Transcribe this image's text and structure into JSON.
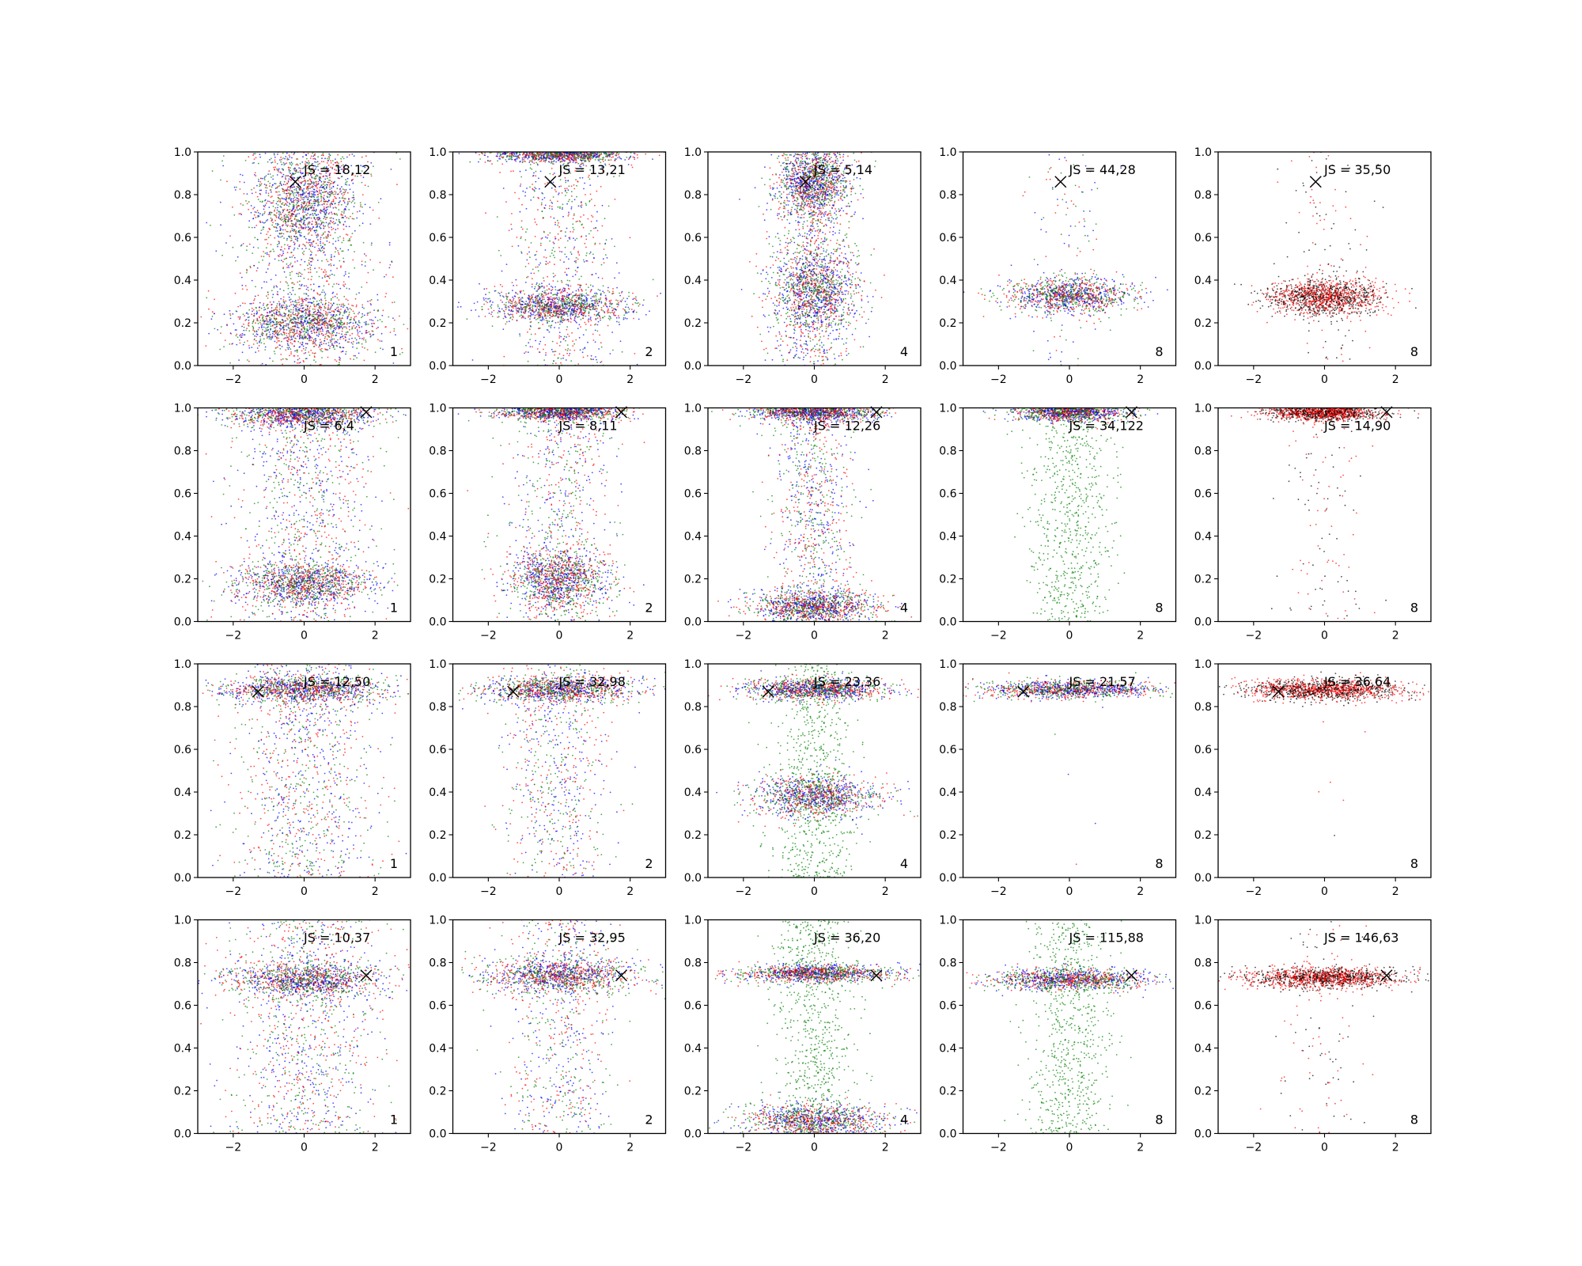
{
  "figure": {
    "layout": "4 rows x 5 columns grid of scatter subplots",
    "series_colors": {
      "green": "#008000",
      "blue": "#0000ff",
      "red": "#ff0000",
      "black": "#000000"
    },
    "marker_x_color": "#000000"
  },
  "chart_data": [
    {
      "type": "scatter",
      "row": 1,
      "col": 1,
      "js_label": "JS = 18,12",
      "corner_label": "1",
      "xlim": [
        -3,
        3
      ],
      "ylim": [
        0,
        1
      ],
      "x_ticks": [
        "−2",
        "0",
        "2"
      ],
      "y_ticks": [
        "0.0",
        "0.2",
        "0.4",
        "0.6",
        "0.8",
        "1.0"
      ],
      "marker_x": {
        "x": -0.25,
        "y": 0.86
      },
      "series_colors": [
        "green",
        "blue",
        "red"
      ],
      "clusters": [
        {
          "cx": 0,
          "cy": 0.2,
          "sx": 1.0,
          "sy": 0.06
        },
        {
          "cx": 0,
          "cy": 0.78,
          "sx": 0.7,
          "sy": 0.12
        }
      ],
      "spread": "wide vertical column"
    },
    {
      "type": "scatter",
      "row": 1,
      "col": 2,
      "js_label": "JS = 13,21",
      "corner_label": "2",
      "xlim": [
        -3,
        3
      ],
      "ylim": [
        0,
        1
      ],
      "x_ticks": [
        "−2",
        "0",
        "2"
      ],
      "y_ticks": [
        "0.0",
        "0.2",
        "0.4",
        "0.6",
        "0.8",
        "1.0"
      ],
      "marker_x": {
        "x": -0.25,
        "y": 0.86
      },
      "series_colors": [
        "green",
        "blue",
        "red"
      ],
      "clusters": [
        {
          "cx": 0,
          "cy": 0.28,
          "sx": 1.0,
          "sy": 0.04
        },
        {
          "cx": 0,
          "cy": 0.99,
          "sx": 1.0,
          "sy": 0.02
        }
      ],
      "spread": "vertical column"
    },
    {
      "type": "scatter",
      "row": 1,
      "col": 3,
      "js_label": "JS = 5,14",
      "corner_label": "4",
      "xlim": [
        -3,
        3
      ],
      "ylim": [
        0,
        1
      ],
      "x_ticks": [
        "−2",
        "0",
        "2"
      ],
      "y_ticks": [
        "0.0",
        "0.2",
        "0.4",
        "0.6",
        "0.8",
        "1.0"
      ],
      "marker_x": {
        "x": -0.25,
        "y": 0.86
      },
      "series_colors": [
        "green",
        "blue",
        "red"
      ],
      "clusters": [
        {
          "cx": 0,
          "cy": 0.35,
          "sx": 0.6,
          "sy": 0.1
        },
        {
          "cx": 0,
          "cy": 0.85,
          "sx": 0.5,
          "sy": 0.08
        }
      ],
      "spread": "narrow vertical column"
    },
    {
      "type": "scatter",
      "row": 1,
      "col": 4,
      "js_label": "JS = 44,28",
      "corner_label": "8",
      "xlim": [
        -3,
        3
      ],
      "ylim": [
        0,
        1
      ],
      "x_ticks": [
        "−2",
        "0",
        "2"
      ],
      "y_ticks": [
        "0.0",
        "0.2",
        "0.4",
        "0.6",
        "0.8",
        "1.0"
      ],
      "marker_x": {
        "x": -0.25,
        "y": 0.86
      },
      "series_colors": [
        "green",
        "blue",
        "red"
      ],
      "clusters": [
        {
          "cx": 0,
          "cy": 0.33,
          "sx": 0.9,
          "sy": 0.04
        }
      ],
      "spread": "dense band, sparse column"
    },
    {
      "type": "scatter",
      "row": 1,
      "col": 5,
      "js_label": "JS = 35,50",
      "corner_label": "8",
      "xlim": [
        -3,
        3
      ],
      "ylim": [
        0,
        1
      ],
      "x_ticks": [
        "−2",
        "0",
        "2"
      ],
      "y_ticks": [
        "0.0",
        "0.2",
        "0.4",
        "0.6",
        "0.8",
        "1.0"
      ],
      "marker_x": {
        "x": -0.25,
        "y": 0.86
      },
      "series_colors": [
        "black",
        "red"
      ],
      "clusters": [
        {
          "cx": 0,
          "cy": 0.32,
          "sx": 0.8,
          "sy": 0.04
        }
      ],
      "spread": "dense band, sparse column"
    },
    {
      "type": "scatter",
      "row": 2,
      "col": 1,
      "js_label": "JS = 6,4",
      "corner_label": "1",
      "xlim": [
        -3,
        3
      ],
      "ylim": [
        0,
        1
      ],
      "x_ticks": [
        "−2",
        "0",
        "2"
      ],
      "y_ticks": [
        "0.0",
        "0.2",
        "0.4",
        "0.6",
        "0.8",
        "1.0"
      ],
      "marker_x": {
        "x": 1.75,
        "y": 0.98
      },
      "series_colors": [
        "green",
        "blue",
        "red"
      ],
      "clusters": [
        {
          "cx": 0,
          "cy": 0.18,
          "sx": 1.0,
          "sy": 0.05
        },
        {
          "cx": 0,
          "cy": 0.97,
          "sx": 1.0,
          "sy": 0.03
        }
      ],
      "spread": "wide vertical column"
    },
    {
      "type": "scatter",
      "row": 2,
      "col": 2,
      "js_label": "JS = 8,11",
      "corner_label": "2",
      "xlim": [
        -3,
        3
      ],
      "ylim": [
        0,
        1
      ],
      "x_ticks": [
        "−2",
        "0",
        "2"
      ],
      "y_ticks": [
        "0.0",
        "0.2",
        "0.4",
        "0.6",
        "0.8",
        "1.0"
      ],
      "marker_x": {
        "x": 1.75,
        "y": 0.98
      },
      "series_colors": [
        "green",
        "blue",
        "red"
      ],
      "clusters": [
        {
          "cx": 0,
          "cy": 0.98,
          "sx": 0.9,
          "sy": 0.02
        },
        {
          "cx": 0,
          "cy": 0.2,
          "sx": 0.7,
          "sy": 0.07
        }
      ],
      "spread": "vertical column"
    },
    {
      "type": "scatter",
      "row": 2,
      "col": 3,
      "js_label": "JS = 12,26",
      "corner_label": "4",
      "xlim": [
        -3,
        3
      ],
      "ylim": [
        0,
        1
      ],
      "x_ticks": [
        "−2",
        "0",
        "2"
      ],
      "y_ticks": [
        "0.0",
        "0.2",
        "0.4",
        "0.6",
        "0.8",
        "1.0"
      ],
      "marker_x": {
        "x": 1.75,
        "y": 0.98
      },
      "series_colors": [
        "green",
        "blue",
        "red"
      ],
      "clusters": [
        {
          "cx": 0,
          "cy": 0.98,
          "sx": 0.9,
          "sy": 0.02
        },
        {
          "cx": 0,
          "cy": 0.07,
          "sx": 0.9,
          "sy": 0.04
        }
      ],
      "spread": "narrow vertical column"
    },
    {
      "type": "scatter",
      "row": 2,
      "col": 4,
      "js_label": "JS = 34,122",
      "corner_label": "8",
      "xlim": [
        -3,
        3
      ],
      "ylim": [
        0,
        1
      ],
      "x_ticks": [
        "−2",
        "0",
        "2"
      ],
      "y_ticks": [
        "0.0",
        "0.2",
        "0.4",
        "0.6",
        "0.8",
        "1.0"
      ],
      "marker_x": {
        "x": 1.75,
        "y": 0.98
      },
      "series_colors": [
        "green",
        "blue",
        "red"
      ],
      "clusters": [
        {
          "cx": 0,
          "cy": 0.98,
          "sx": 0.8,
          "sy": 0.02
        }
      ],
      "spread": "dense band, green column"
    },
    {
      "type": "scatter",
      "row": 2,
      "col": 5,
      "js_label": "JS = 14,90",
      "corner_label": "8",
      "xlim": [
        -3,
        3
      ],
      "ylim": [
        0,
        1
      ],
      "x_ticks": [
        "−2",
        "0",
        "2"
      ],
      "y_ticks": [
        "0.0",
        "0.2",
        "0.4",
        "0.6",
        "0.8",
        "1.0"
      ],
      "marker_x": {
        "x": 1.75,
        "y": 0.98
      },
      "series_colors": [
        "black",
        "red"
      ],
      "clusters": [
        {
          "cx": 0,
          "cy": 0.98,
          "sx": 0.8,
          "sy": 0.02
        }
      ],
      "spread": "dense band, sparse column"
    },
    {
      "type": "scatter",
      "row": 3,
      "col": 1,
      "js_label": "JS = 12,50",
      "corner_label": "1",
      "xlim": [
        -3,
        3
      ],
      "ylim": [
        0,
        1
      ],
      "x_ticks": [
        "−2",
        "0",
        "2"
      ],
      "y_ticks": [
        "0.0",
        "0.2",
        "0.4",
        "0.6",
        "0.8",
        "1.0"
      ],
      "marker_x": {
        "x": -1.3,
        "y": 0.87
      },
      "series_colors": [
        "green",
        "blue",
        "red"
      ],
      "clusters": [
        {
          "cx": 0,
          "cy": 0.88,
          "sx": 1.1,
          "sy": 0.03
        }
      ],
      "spread": "wide vertical column"
    },
    {
      "type": "scatter",
      "row": 3,
      "col": 2,
      "js_label": "JS = 32,98",
      "corner_label": "2",
      "xlim": [
        -3,
        3
      ],
      "ylim": [
        0,
        1
      ],
      "x_ticks": [
        "−2",
        "0",
        "2"
      ],
      "y_ticks": [
        "0.0",
        "0.2",
        "0.4",
        "0.6",
        "0.8",
        "1.0"
      ],
      "marker_x": {
        "x": -1.3,
        "y": 0.87
      },
      "series_colors": [
        "green",
        "blue",
        "red"
      ],
      "clusters": [
        {
          "cx": 0,
          "cy": 0.88,
          "sx": 1.1,
          "sy": 0.03
        }
      ],
      "spread": "vertical column"
    },
    {
      "type": "scatter",
      "row": 3,
      "col": 3,
      "js_label": "JS = 23,36",
      "corner_label": "4",
      "xlim": [
        -3,
        3
      ],
      "ylim": [
        0,
        1
      ],
      "x_ticks": [
        "−2",
        "0",
        "2"
      ],
      "y_ticks": [
        "0.0",
        "0.2",
        "0.4",
        "0.6",
        "0.8",
        "1.0"
      ],
      "marker_x": {
        "x": -1.3,
        "y": 0.87
      },
      "series_colors": [
        "green",
        "blue",
        "red"
      ],
      "clusters": [
        {
          "cx": 0,
          "cy": 0.88,
          "sx": 1.0,
          "sy": 0.025
        },
        {
          "cx": 0,
          "cy": 0.38,
          "sx": 0.9,
          "sy": 0.05
        }
      ],
      "spread": "green column"
    },
    {
      "type": "scatter",
      "row": 3,
      "col": 4,
      "js_label": "JS = 21,57",
      "corner_label": "8",
      "xlim": [
        -3,
        3
      ],
      "ylim": [
        0,
        1
      ],
      "x_ticks": [
        "−2",
        "0",
        "2"
      ],
      "y_ticks": [
        "0.0",
        "0.2",
        "0.4",
        "0.6",
        "0.8",
        "1.0"
      ],
      "marker_x": {
        "x": -1.3,
        "y": 0.87
      },
      "series_colors": [
        "green",
        "blue",
        "red"
      ],
      "clusters": [
        {
          "cx": 0,
          "cy": 0.88,
          "sx": 1.2,
          "sy": 0.02
        }
      ],
      "spread": "dense band only"
    },
    {
      "type": "scatter",
      "row": 3,
      "col": 5,
      "js_label": "JS = 36,64",
      "corner_label": "8",
      "xlim": [
        -3,
        3
      ],
      "ylim": [
        0,
        1
      ],
      "x_ticks": [
        "−2",
        "0",
        "2"
      ],
      "y_ticks": [
        "0.0",
        "0.2",
        "0.4",
        "0.6",
        "0.8",
        "1.0"
      ],
      "marker_x": {
        "x": -1.3,
        "y": 0.87
      },
      "series_colors": [
        "black",
        "red"
      ],
      "clusters": [
        {
          "cx": 0,
          "cy": 0.88,
          "sx": 1.1,
          "sy": 0.025
        }
      ],
      "spread": "dense band only"
    },
    {
      "type": "scatter",
      "row": 4,
      "col": 1,
      "js_label": "JS = 10,37",
      "corner_label": "1",
      "xlim": [
        -3,
        3
      ],
      "ylim": [
        0,
        1
      ],
      "x_ticks": [
        "−2",
        "0",
        "2"
      ],
      "y_ticks": [
        "0.0",
        "0.2",
        "0.4",
        "0.6",
        "0.8",
        "1.0"
      ],
      "marker_x": {
        "x": 1.75,
        "y": 0.74
      },
      "series_colors": [
        "green",
        "blue",
        "red"
      ],
      "clusters": [
        {
          "cx": 0,
          "cy": 0.72,
          "sx": 1.1,
          "sy": 0.04
        }
      ],
      "spread": "wide vertical column"
    },
    {
      "type": "scatter",
      "row": 4,
      "col": 2,
      "js_label": "JS = 32,95",
      "corner_label": "2",
      "xlim": [
        -3,
        3
      ],
      "ylim": [
        0,
        1
      ],
      "x_ticks": [
        "−2",
        "0",
        "2"
      ],
      "y_ticks": [
        "0.0",
        "0.2",
        "0.4",
        "0.6",
        "0.8",
        "1.0"
      ],
      "marker_x": {
        "x": 1.75,
        "y": 0.74
      },
      "series_colors": [
        "green",
        "blue",
        "red"
      ],
      "clusters": [
        {
          "cx": 0,
          "cy": 0.74,
          "sx": 1.1,
          "sy": 0.04
        }
      ],
      "spread": "vertical column"
    },
    {
      "type": "scatter",
      "row": 4,
      "col": 3,
      "js_label": "JS = 36,20",
      "corner_label": "4",
      "xlim": [
        -3,
        3
      ],
      "ylim": [
        0,
        1
      ],
      "x_ticks": [
        "−2",
        "0",
        "2"
      ],
      "y_ticks": [
        "0.0",
        "0.2",
        "0.4",
        "0.6",
        "0.8",
        "1.0"
      ],
      "marker_x": {
        "x": 1.75,
        "y": 0.74
      },
      "series_colors": [
        "green",
        "blue",
        "red"
      ],
      "clusters": [
        {
          "cx": 0,
          "cy": 0.75,
          "sx": 1.1,
          "sy": 0.02
        },
        {
          "cx": 0,
          "cy": 0.06,
          "sx": 1.0,
          "sy": 0.04
        }
      ],
      "spread": "green column"
    },
    {
      "type": "scatter",
      "row": 4,
      "col": 4,
      "js_label": "JS = 115,88",
      "corner_label": "8",
      "xlim": [
        -3,
        3
      ],
      "ylim": [
        0,
        1
      ],
      "x_ticks": [
        "−2",
        "0",
        "2"
      ],
      "y_ticks": [
        "0.0",
        "0.2",
        "0.4",
        "0.6",
        "0.8",
        "1.0"
      ],
      "marker_x": {
        "x": 1.75,
        "y": 0.74
      },
      "series_colors": [
        "green",
        "blue",
        "red"
      ],
      "clusters": [
        {
          "cx": 0,
          "cy": 0.72,
          "sx": 1.1,
          "sy": 0.025
        }
      ],
      "spread": "dense band, green column"
    },
    {
      "type": "scatter",
      "row": 4,
      "col": 5,
      "js_label": "JS = 146,63",
      "corner_label": "8",
      "xlim": [
        -3,
        3
      ],
      "ylim": [
        0,
        1
      ],
      "x_ticks": [
        "−2",
        "0",
        "2"
      ],
      "y_ticks": [
        "0.0",
        "0.2",
        "0.4",
        "0.6",
        "0.8",
        "1.0"
      ],
      "marker_x": {
        "x": 1.75,
        "y": 0.74
      },
      "series_colors": [
        "black",
        "red"
      ],
      "clusters": [
        {
          "cx": 0,
          "cy": 0.73,
          "sx": 1.1,
          "sy": 0.025
        }
      ],
      "spread": "dense band, sparse column"
    }
  ]
}
